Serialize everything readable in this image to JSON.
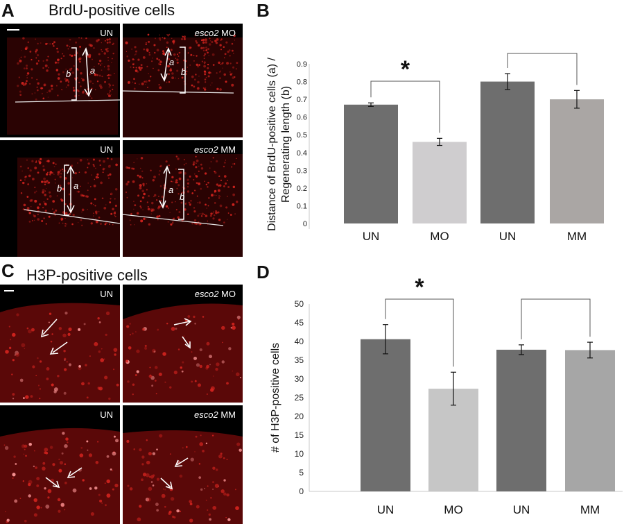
{
  "panels": {
    "A": {
      "letter": "A",
      "title": "BrdU-positive cells"
    },
    "B": {
      "letter": "B"
    },
    "C": {
      "letter": "C",
      "title": "H3P-positive cells"
    },
    "D": {
      "letter": "D"
    }
  },
  "micrographs": {
    "A": [
      {
        "label_plain": "UN",
        "label_italic": "",
        "bracket_outer": "b",
        "bracket_inner": "a"
      },
      {
        "label_plain": " MO",
        "label_italic": "esco2",
        "bracket_outer": "b",
        "bracket_inner": "a"
      },
      {
        "label_plain": "UN",
        "label_italic": "",
        "bracket_outer": "b",
        "bracket_inner": "a"
      },
      {
        "label_plain": " MM",
        "label_italic": "esco2",
        "bracket_outer": "b",
        "bracket_inner": "a"
      }
    ],
    "C": [
      {
        "label_plain": "UN",
        "label_italic": ""
      },
      {
        "label_plain": " MO",
        "label_italic": "esco2"
      },
      {
        "label_plain": "UN",
        "label_italic": ""
      },
      {
        "label_plain": " MM",
        "label_italic": "esco2"
      }
    ]
  },
  "colors": {
    "bar_dark": "#6e6e6e",
    "bar_light_B": "#cfcdcf",
    "bar_grey_B": "#aaa6a4",
    "bar_light_D": "#c6c6c6",
    "bar_grey_D": "#a6a6a6",
    "micro_red": "#d4241f"
  },
  "chart_data": [
    {
      "id": "B",
      "type": "bar",
      "categories": [
        "UN",
        "MO",
        "UN",
        "MM"
      ],
      "values": [
        0.67,
        0.46,
        0.8,
        0.7
      ],
      "errors": [
        0.01,
        0.02,
        0.045,
        0.05
      ],
      "ylabel": "Distance of BrdU-positive cells (a) / Regenerating length (b)",
      "ylabel_lines": [
        "Distance of BrdU-positive cells (a) /",
        "Regenerating length (b)"
      ],
      "xlabel": "",
      "ylim": [
        0,
        0.9
      ],
      "yticks": [
        "0",
        "0.1",
        "0.2",
        "0.3",
        "0.4",
        "0.5",
        "0.6",
        "0.7",
        "0.8",
        "0.9"
      ],
      "significance": [
        {
          "from": 0,
          "to": 1,
          "label": "*"
        },
        {
          "from": 2,
          "to": 3,
          "label": ""
        }
      ],
      "grid": false
    },
    {
      "id": "D",
      "type": "bar",
      "categories": [
        "UN",
        "MO",
        "UN",
        "MM"
      ],
      "values": [
        40.6,
        27.4,
        37.8,
        37.7
      ],
      "errors": [
        3.9,
        4.4,
        1.3,
        2.1
      ],
      "ylabel": "# of H3P-positive cells",
      "xlabel": "",
      "ylim": [
        0,
        50
      ],
      "yticks": [
        "0",
        "5",
        "10",
        "15",
        "20",
        "25",
        "30",
        "35",
        "40",
        "45",
        "50"
      ],
      "significance": [
        {
          "from": 0,
          "to": 1,
          "label": "*"
        },
        {
          "from": 2,
          "to": 3,
          "label": ""
        }
      ],
      "grid": false
    }
  ]
}
